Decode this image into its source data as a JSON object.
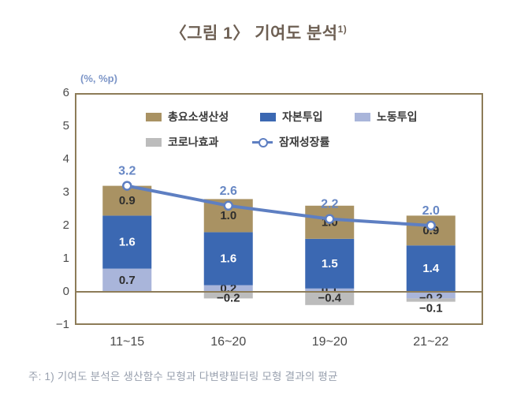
{
  "title": {
    "main": "〈그림 1〉 기여도 분석",
    "sup": "1)"
  },
  "unit_label": "(%, %p)",
  "footnote": "주: 1) 기여도 분석은 생산함수 모형과 다변량필터링 모형 결과의 평균",
  "colors": {
    "plot_border": "#8d7c58",
    "zero_line": "#8d7c58",
    "trend_line": "#5e7fc2",
    "trend_label": "#6787c4",
    "axis_text": "#4a4a4a",
    "title_text": "#6e6054",
    "footnote_text": "#98a0ae"
  },
  "legend": {
    "items": [
      {
        "label": "총요소생산성",
        "type": "swatch",
        "series": "총요소생산성"
      },
      {
        "label": "자본투입",
        "type": "swatch",
        "series": "자본투입"
      },
      {
        "label": "노동투입",
        "type": "swatch",
        "series": "노동투입"
      },
      {
        "label": "코로나효과",
        "type": "swatch",
        "series": "코로나효과"
      },
      {
        "label": "잠재성장률",
        "type": "line-marker",
        "series": "잠재성장률"
      }
    ]
  },
  "chart_data": {
    "type": "bar",
    "subtype": "stacked-bar-with-line",
    "title": "〈그림 1〉 기여도 분석 1)",
    "xlabel": "",
    "ylabel": "(%, %p)",
    "categories": [
      "11~15",
      "16~20",
      "19~20",
      "21~22"
    ],
    "series": [
      {
        "name": "총요소생산성",
        "type": "bar",
        "color": "#a99263",
        "label_color": "#2e2e2e",
        "values": [
          0.9,
          1.0,
          1.0,
          0.9
        ]
      },
      {
        "name": "자본투입",
        "type": "bar",
        "color": "#3b68b2",
        "label_color": "#ffffff",
        "values": [
          1.6,
          1.6,
          1.5,
          1.4
        ]
      },
      {
        "name": "노동투입",
        "type": "bar",
        "color": "#a9b5da",
        "label_color": "#2e2e2e",
        "values": [
          0.7,
          0.2,
          0.1,
          -0.2
        ]
      },
      {
        "name": "코로나효과",
        "type": "bar",
        "color": "#bcbcbc",
        "label_color": "#2e2e2e",
        "values": [
          0.0,
          -0.2,
          -0.4,
          -0.1
        ]
      },
      {
        "name": "잠재성장률",
        "type": "line",
        "color": "#5e7fc2",
        "label_color": "#6787c4",
        "values": [
          3.2,
          2.6,
          2.2,
          2.0
        ]
      }
    ],
    "stack_order_bottom_to_top": [
      "코로나효과",
      "노동투입",
      "자본투입",
      "총요소생산성"
    ],
    "ylim": [
      -1,
      6
    ],
    "yticks": [
      6,
      5,
      4,
      3,
      2,
      1,
      0,
      -1
    ],
    "grid": false,
    "legend_position": "top-inside"
  }
}
